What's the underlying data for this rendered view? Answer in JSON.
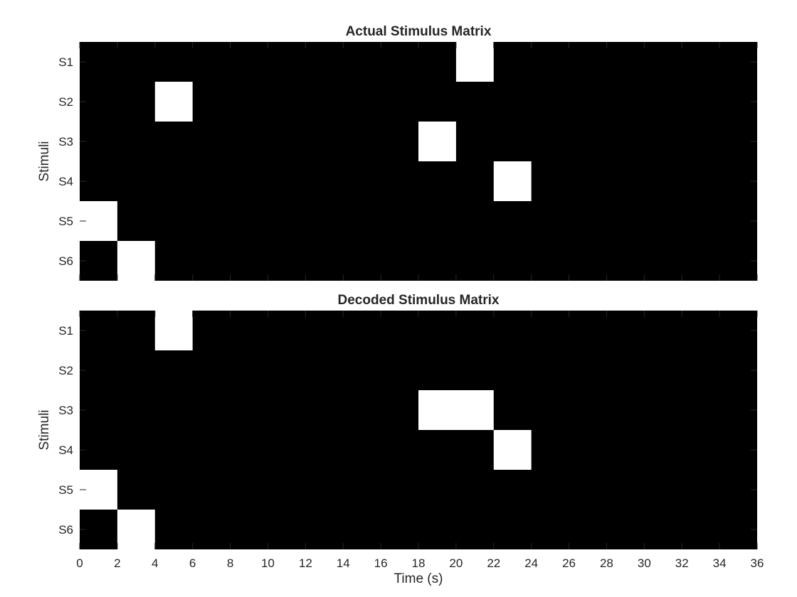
{
  "chart_data": [
    {
      "type": "heatmap",
      "title": "Actual Stimulus Matrix",
      "ylabel": "Stimuli",
      "xlabel": "",
      "rows": [
        "S1",
        "S2",
        "S3",
        "S4",
        "S5",
        "S6"
      ],
      "xlim": [
        0,
        36
      ],
      "bin_width_s": 2,
      "colormap": {
        "on": "#ffffff",
        "off": "#000000"
      },
      "active_cells": [
        {
          "row": "S1",
          "x": [
            20,
            22
          ]
        },
        {
          "row": "S2",
          "x": [
            4,
            6
          ]
        },
        {
          "row": "S3",
          "x": [
            18,
            20
          ]
        },
        {
          "row": "S4",
          "x": [
            22,
            24
          ]
        },
        {
          "row": "S5",
          "x": [
            0,
            2
          ]
        },
        {
          "row": "S6",
          "x": [
            2,
            4
          ]
        }
      ]
    },
    {
      "type": "heatmap",
      "title": "Decoded Stimulus Matrix",
      "ylabel": "Stimuli",
      "xlabel": "Time (s)",
      "rows": [
        "S1",
        "S2",
        "S3",
        "S4",
        "S5",
        "S6"
      ],
      "xlim": [
        0,
        36
      ],
      "bin_width_s": 2,
      "x_ticks": [
        0,
        2,
        4,
        6,
        8,
        10,
        12,
        14,
        16,
        18,
        20,
        22,
        24,
        26,
        28,
        30,
        32,
        34,
        36
      ],
      "colormap": {
        "on": "#ffffff",
        "off": "#000000"
      },
      "active_cells": [
        {
          "row": "S1",
          "x": [
            4,
            6
          ]
        },
        {
          "row": "S3",
          "x": [
            18,
            22
          ]
        },
        {
          "row": "S4",
          "x": [
            22,
            24
          ]
        },
        {
          "row": "S5",
          "x": [
            0,
            2
          ]
        },
        {
          "row": "S6",
          "x": [
            2,
            4
          ]
        }
      ]
    }
  ]
}
